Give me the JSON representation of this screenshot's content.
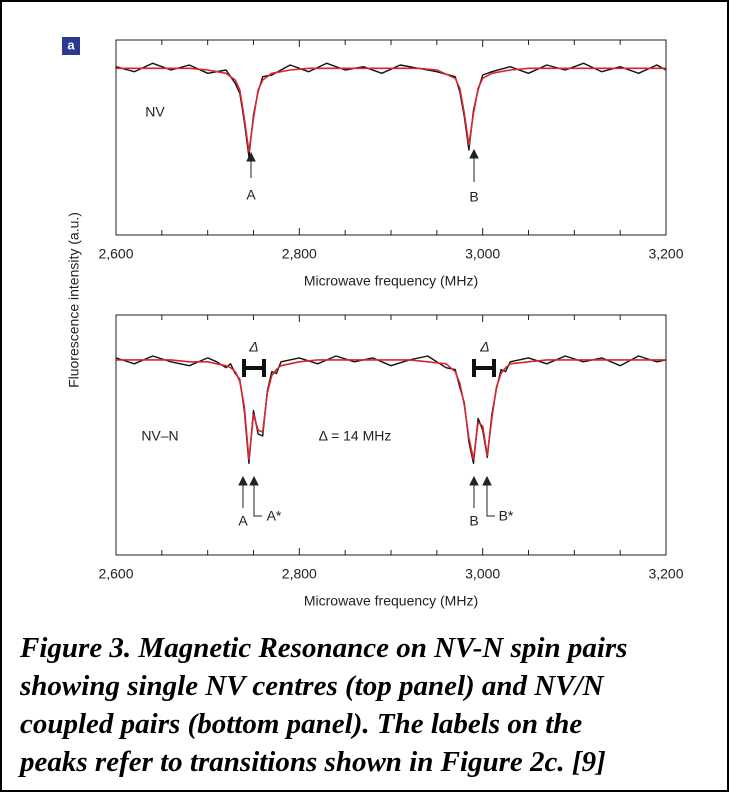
{
  "panel_label": "a",
  "chart_data": [
    {
      "type": "line",
      "ylabel": "Fluorescence intensity (a.u.)",
      "xlabel": "Microwave frequency (MHz)",
      "xlim": [
        2600,
        3200
      ],
      "ylim": [
        0,
        1.17
      ],
      "xticks": [
        {
          "value": 2600,
          "label": "2,600"
        },
        {
          "value": 2800,
          "label": "2,800"
        },
        {
          "value": 3000,
          "label": "3,000"
        },
        {
          "value": 3200,
          "label": "3,200"
        }
      ],
      "xminor_ticks": [
        2650,
        2700,
        2750,
        2850,
        2900,
        2950,
        3050,
        3100,
        3150
      ],
      "annotations": [
        "NV",
        "A",
        "B"
      ],
      "x": [
        2600,
        2620,
        2640,
        2660,
        2680,
        2700,
        2720,
        2730,
        2735,
        2740,
        2745,
        2750,
        2755,
        2760,
        2770,
        2790,
        2810,
        2830,
        2850,
        2870,
        2890,
        2910,
        2930,
        2950,
        2970,
        2975,
        2980,
        2985,
        2990,
        2995,
        3000,
        3010,
        3030,
        3050,
        3070,
        3090,
        3110,
        3130,
        3150,
        3170,
        3190,
        3200
      ],
      "series": [
        {
          "color": "#111111",
          "values": [
            1.01,
            0.98,
            1.03,
            0.99,
            1.02,
            0.97,
            0.99,
            0.91,
            0.85,
            0.68,
            0.47,
            0.72,
            0.86,
            0.95,
            0.96,
            1.02,
            0.98,
            1.03,
            0.99,
            1.01,
            0.97,
            1.02,
            1.0,
            0.98,
            0.95,
            0.86,
            0.71,
            0.51,
            0.75,
            0.87,
            0.96,
            0.98,
            1.01,
            0.97,
            1.02,
            0.99,
            1.03,
            0.98,
            1.01,
            0.97,
            1.02,
            0.99
          ]
        },
        {
          "color": "#d9262e",
          "values": [
            1.0,
            1.0,
            1.0,
            1.0,
            1.0,
            0.99,
            0.97,
            0.93,
            0.87,
            0.7,
            0.5,
            0.7,
            0.87,
            0.93,
            0.97,
            0.99,
            1.0,
            1.0,
            1.0,
            1.0,
            1.0,
            1.0,
            1.0,
            0.99,
            0.94,
            0.88,
            0.73,
            0.54,
            0.73,
            0.88,
            0.94,
            0.97,
            0.99,
            1.0,
            1.0,
            1.0,
            1.0,
            1.0,
            1.0,
            1.0,
            1.0,
            1.0
          ]
        }
      ]
    },
    {
      "type": "line",
      "xlabel": "Microwave frequency (MHz)",
      "xlim": [
        2600,
        3200
      ],
      "ylim": [
        0,
        1.23
      ],
      "xticks": [
        {
          "value": 2600,
          "label": "2,600"
        },
        {
          "value": 2800,
          "label": "2,800"
        },
        {
          "value": 3000,
          "label": "3,000"
        },
        {
          "value": 3200,
          "label": "3,200"
        }
      ],
      "xminor_ticks": [
        2650,
        2700,
        2750,
        2850,
        2900,
        2950,
        3050,
        3100,
        3150
      ],
      "annotations": [
        "Δ",
        "Δ",
        "NV–N",
        "Δ = 14 MHz",
        "A",
        "A*",
        "B",
        "B*"
      ],
      "x": [
        2600,
        2620,
        2640,
        2660,
        2680,
        2700,
        2710,
        2720,
        2725,
        2730,
        2735,
        2740,
        2745,
        2750,
        2755,
        2760,
        2765,
        2770,
        2775,
        2780,
        2800,
        2820,
        2840,
        2860,
        2880,
        2900,
        2920,
        2940,
        2960,
        2970,
        2975,
        2980,
        2985,
        2990,
        2995,
        3000,
        3005,
        3010,
        3015,
        3020,
        3025,
        3030,
        3050,
        3070,
        3090,
        3110,
        3130,
        3150,
        3170,
        3190,
        3200
      ],
      "series": [
        {
          "color": "#111111",
          "values": [
            1.01,
            0.98,
            1.02,
            0.99,
            0.97,
            1.01,
            0.99,
            0.96,
            0.98,
            0.93,
            0.9,
            0.74,
            0.47,
            0.74,
            0.62,
            0.61,
            0.84,
            0.94,
            0.93,
            0.99,
            1.01,
            0.98,
            1.02,
            0.99,
            1.01,
            0.97,
            1.0,
            1.02,
            0.96,
            0.95,
            0.86,
            0.78,
            0.58,
            0.47,
            0.7,
            0.64,
            0.5,
            0.72,
            0.85,
            0.95,
            0.94,
            0.99,
            1.01,
            0.98,
            1.02,
            0.99,
            1.01,
            0.97,
            1.02,
            0.99,
            1.0
          ]
        },
        {
          "color": "#d9262e",
          "values": [
            1.0,
            1.0,
            1.0,
            1.0,
            0.99,
            0.99,
            0.98,
            0.97,
            0.96,
            0.94,
            0.89,
            0.76,
            0.49,
            0.72,
            0.64,
            0.63,
            0.83,
            0.92,
            0.95,
            0.97,
            0.99,
            1.0,
            1.0,
            1.0,
            1.0,
            1.0,
            1.0,
            0.99,
            0.98,
            0.94,
            0.88,
            0.77,
            0.6,
            0.49,
            0.68,
            0.66,
            0.51,
            0.7,
            0.86,
            0.93,
            0.96,
            0.98,
            0.99,
            1.0,
            1.0,
            1.0,
            1.0,
            1.0,
            1.0,
            1.0,
            1.0
          ]
        }
      ]
    }
  ],
  "caption": [
    "Figure 3. Magnetic Resonance on NV-N spin pairs",
    "showing single NV centres (top panel) and NV/N",
    "coupled pairs (bottom panel). The labels on the",
    "peaks refer to transitions shown in Figure 2c. [9]"
  ]
}
